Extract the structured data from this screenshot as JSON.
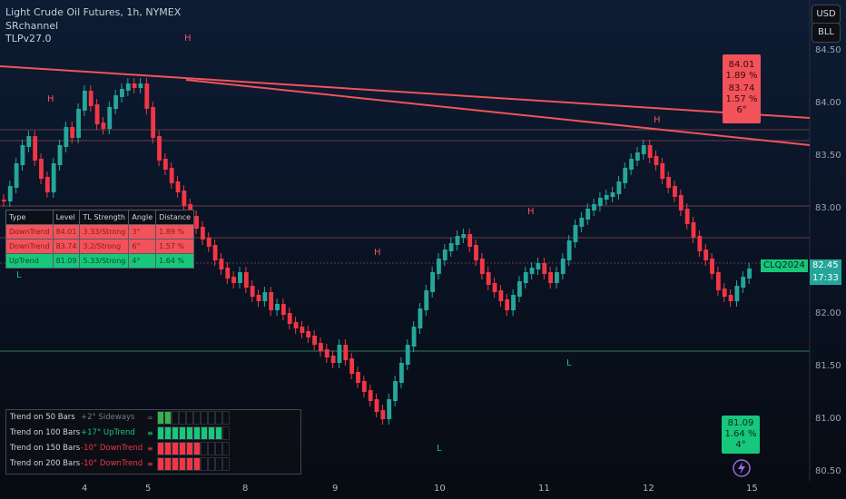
{
  "header": {
    "title": "Light Crude Oil Futures, 1h, NYMEX",
    "indicator1": "SRchannel",
    "indicator2": "TLPv27.0"
  },
  "buttons": {
    "currency": "USD",
    "bll": "BLL"
  },
  "y_axis": {
    "ticks": [
      "84.50",
      "84.00",
      "83.50",
      "83.00",
      "82.00",
      "81.50",
      "81.00",
      "80.50"
    ]
  },
  "x_axis": {
    "ticks": [
      "4",
      "5",
      "8",
      "9",
      "10",
      "11",
      "12",
      "15"
    ]
  },
  "price": {
    "symbol": "CLQ2024",
    "last": "82.45",
    "countdown": "17:33",
    "colors": {
      "up": "#26a69a",
      "down": "#f23645",
      "green_label": "#17c77c"
    }
  },
  "markers": {
    "highs": [
      "H",
      "H",
      "H",
      "H",
      "H",
      "H"
    ],
    "lows": [
      "L",
      "L",
      "L"
    ]
  },
  "boxes": {
    "top_value": "84.01",
    "top_pct": "1.89 %",
    "mid_value": "83.74",
    "mid_pct": "1.57 %",
    "mid_angle": "6°",
    "low_value": "81.09",
    "low_pct": "1.64 %",
    "low_angle": "4°"
  },
  "levels_table": {
    "headers": [
      "Type",
      "Level",
      "TL Strength",
      "Angle",
      "Distance"
    ],
    "rows": [
      [
        "DownTrend",
        "84.01",
        "3.33/Strong",
        "3°",
        "1.89 %"
      ],
      [
        "DownTrend",
        "83.74",
        "3.2/Strong",
        "6°",
        "1.57 %"
      ],
      [
        "UpTrend",
        "81.09",
        "5.33/Strong",
        "4°",
        "1.64 %"
      ]
    ]
  },
  "trend_table": {
    "rows": [
      {
        "name": "Trend on 50 Bars",
        "desc": "+2° Sideways",
        "symbol": "=",
        "color": "#787b86",
        "filled": 2,
        "fill_color": "#37b24d"
      },
      {
        "name": "Trend on 100 Bars",
        "desc": "+17° UpTrend",
        "symbol": "≡",
        "color": "#17c77c",
        "filled": 9,
        "fill_color": "#17c77c"
      },
      {
        "name": "Trend on 150 Bars",
        "desc": "-10° DownTrend",
        "symbol": "≡",
        "color": "#f23645",
        "filled": 6,
        "fill_color": "#f23645"
      },
      {
        "name": "Trend on 200 Bars",
        "desc": "-10° DownTrend",
        "symbol": "≡",
        "color": "#f23645",
        "filled": 6,
        "fill_color": "#f23645"
      }
    ]
  }
}
